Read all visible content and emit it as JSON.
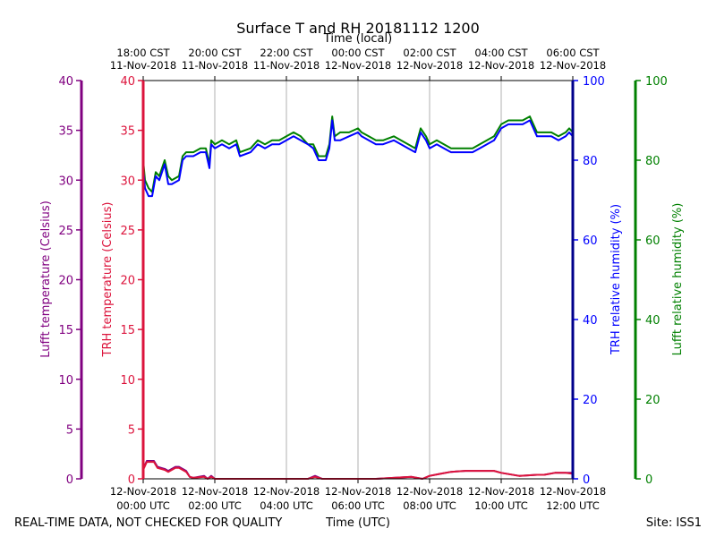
{
  "chart_data": {
    "type": "line",
    "title": "Surface T and RH 20181112 1200",
    "x_top_label": "Time (local)",
    "x_bottom_label": "Time (UTC)",
    "footer_left": "REAL-TIME DATA, NOT CHECKED FOR QUALITY",
    "footer_right": "Site: ISS1",
    "x_range_hours": [
      0,
      12
    ],
    "bottom_ticks": [
      {
        "hour": 0,
        "line1": "12-Nov-2018",
        "line2": "00:00 UTC"
      },
      {
        "hour": 2,
        "line1": "12-Nov-2018",
        "line2": "02:00 UTC"
      },
      {
        "hour": 4,
        "line1": "12-Nov-2018",
        "line2": "04:00 UTC"
      },
      {
        "hour": 6,
        "line1": "12-Nov-2018",
        "line2": "06:00 UTC"
      },
      {
        "hour": 8,
        "line1": "12-Nov-2018",
        "line2": "08:00 UTC"
      },
      {
        "hour": 10,
        "line1": "12-Nov-2018",
        "line2": "10:00 UTC"
      },
      {
        "hour": 12,
        "line1": "12-Nov-2018",
        "line2": "12:00 UTC"
      }
    ],
    "top_ticks": [
      {
        "hour": 0,
        "line1": "18:00 CST",
        "line2": "11-Nov-2018"
      },
      {
        "hour": 2,
        "line1": "20:00 CST",
        "line2": "11-Nov-2018"
      },
      {
        "hour": 4,
        "line1": "22:00 CST",
        "line2": "11-Nov-2018"
      },
      {
        "hour": 6,
        "line1": "00:00 CST",
        "line2": "12-Nov-2018"
      },
      {
        "hour": 8,
        "line1": "02:00 CST",
        "line2": "12-Nov-2018"
      },
      {
        "hour": 10,
        "line1": "04:00 CST",
        "line2": "12-Nov-2018"
      },
      {
        "hour": 12,
        "line1": "06:00 CST",
        "line2": "12-Nov-2018"
      }
    ],
    "axes": {
      "lufft_temp": {
        "label": "Lufft temperature (Celsius)",
        "ylim": [
          0,
          40
        ],
        "ticks": [
          0,
          5,
          10,
          15,
          20,
          25,
          30,
          35,
          40
        ],
        "color": "#800080"
      },
      "trh_temp": {
        "label": "TRH temperature (Celsius)",
        "ylim": [
          0,
          40
        ],
        "ticks": [
          0,
          5,
          10,
          15,
          20,
          25,
          30,
          35,
          40
        ],
        "color": "#dc143c"
      },
      "trh_rh": {
        "label": "TRH relative humidity (%)",
        "ylim": [
          0,
          100
        ],
        "ticks": [
          0,
          20,
          40,
          60,
          80,
          100
        ],
        "color": "#0000ff"
      },
      "lufft_rh": {
        "label": "Lufft relative humidity (%)",
        "ylim": [
          0,
          100
        ],
        "ticks": [
          0,
          20,
          40,
          60,
          80,
          100
        ],
        "color": "#008000"
      }
    },
    "series": [
      {
        "name": "Lufft relative humidity",
        "axis": "lufft_rh",
        "color": "#008000",
        "x": [
          0,
          0.05,
          0.15,
          0.25,
          0.35,
          0.45,
          0.6,
          0.7,
          0.8,
          1.0,
          1.1,
          1.2,
          1.4,
          1.6,
          1.75,
          1.85,
          1.9,
          2.0,
          2.2,
          2.4,
          2.6,
          2.7,
          3.0,
          3.2,
          3.4,
          3.6,
          3.8,
          4.0,
          4.2,
          4.4,
          4.6,
          4.75,
          4.9,
          5.1,
          5.2,
          5.28,
          5.35,
          5.5,
          5.75,
          6.0,
          6.1,
          6.3,
          6.5,
          6.7,
          7.0,
          7.4,
          7.6,
          7.75,
          7.9,
          8.0,
          8.2,
          8.4,
          8.6,
          8.8,
          9.0,
          9.2,
          9.4,
          9.6,
          9.8,
          10.0,
          10.2,
          10.4,
          10.6,
          10.8,
          11.0,
          11.1,
          11.2,
          11.4,
          11.6,
          11.8,
          11.9,
          12.0
        ],
        "values": [
          80,
          75,
          73,
          72,
          77,
          76,
          80,
          76,
          75,
          76,
          81,
          82,
          82,
          83,
          83,
          79,
          85,
          84,
          85,
          84,
          85,
          82,
          83,
          85,
          84,
          85,
          85,
          86,
          87,
          86,
          84,
          84,
          81,
          81,
          84,
          91,
          86,
          87,
          87,
          88,
          87,
          86,
          85,
          85,
          86,
          84,
          83,
          88,
          86,
          84,
          85,
          84,
          83,
          83,
          83,
          83,
          84,
          85,
          86,
          89,
          90,
          90,
          90,
          91,
          87,
          87,
          87,
          87,
          86,
          87,
          88,
          87
        ]
      },
      {
        "name": "TRH relative humidity",
        "axis": "trh_rh",
        "color": "#0000ff",
        "x": [
          0,
          0.05,
          0.15,
          0.25,
          0.35,
          0.45,
          0.6,
          0.7,
          0.8,
          1.0,
          1.1,
          1.2,
          1.4,
          1.6,
          1.75,
          1.85,
          1.9,
          2.0,
          2.2,
          2.4,
          2.6,
          2.7,
          3.0,
          3.2,
          3.4,
          3.6,
          3.8,
          4.0,
          4.2,
          4.4,
          4.6,
          4.75,
          4.9,
          5.1,
          5.2,
          5.28,
          5.35,
          5.5,
          5.75,
          6.0,
          6.1,
          6.3,
          6.5,
          6.7,
          7.0,
          7.4,
          7.6,
          7.75,
          7.9,
          8.0,
          8.2,
          8.4,
          8.6,
          8.8,
          9.0,
          9.2,
          9.4,
          9.6,
          9.8,
          10.0,
          10.2,
          10.4,
          10.6,
          10.8,
          11.0,
          11.1,
          11.2,
          11.4,
          11.6,
          11.8,
          11.9,
          12.0
        ],
        "values": [
          78,
          73,
          71,
          71,
          76,
          75,
          79,
          74,
          74,
          75,
          80,
          81,
          81,
          82,
          82,
          78,
          84,
          83,
          84,
          83,
          84,
          81,
          82,
          84,
          83,
          84,
          84,
          85,
          86,
          85,
          84,
          83,
          80,
          80,
          83,
          90,
          85,
          85,
          86,
          87,
          86,
          85,
          84,
          84,
          85,
          83,
          82,
          87,
          85,
          83,
          84,
          83,
          82,
          82,
          82,
          82,
          83,
          84,
          85,
          88,
          89,
          89,
          89,
          90,
          86,
          86,
          86,
          86,
          85,
          86,
          87,
          86
        ]
      },
      {
        "name": "Lufft temperature",
        "axis": "lufft_temp",
        "color": "#800080",
        "x": [
          0,
          0.1,
          0.3,
          0.4,
          0.6,
          0.7,
          0.9,
          1.0,
          1.1,
          1.2,
          1.3,
          1.4,
          1.7,
          1.8,
          1.9,
          2.0,
          3.0,
          4.0,
          4.6,
          4.8,
          5.0,
          6.0,
          6.5,
          7.0,
          7.5,
          7.8,
          8.0,
          8.3,
          8.6,
          9.0,
          9.5,
          9.8,
          10.0,
          10.5,
          11.0,
          11.2,
          11.5,
          11.8,
          12.0
        ],
        "values": [
          1.0,
          1.8,
          1.8,
          1.2,
          1.0,
          0.8,
          1.2,
          1.2,
          1.0,
          0.8,
          0.2,
          0.1,
          0.3,
          0.0,
          0.3,
          0.0,
          0.0,
          0.0,
          0.0,
          0.3,
          0.0,
          0.0,
          0.0,
          0.1,
          0.2,
          0.0,
          0.3,
          0.5,
          0.7,
          0.8,
          0.8,
          0.8,
          0.6,
          0.3,
          0.4,
          0.4,
          0.6,
          0.6,
          0.6
        ]
      },
      {
        "name": "TRH temperature",
        "axis": "trh_temp",
        "color": "#dc143c",
        "x": [
          0,
          0.1,
          0.3,
          0.4,
          0.6,
          0.7,
          0.9,
          1.0,
          1.1,
          1.2,
          1.3,
          1.4,
          1.7,
          1.8,
          1.9,
          2.0,
          3.0,
          4.0,
          4.6,
          4.8,
          5.0,
          6.0,
          6.5,
          7.0,
          7.5,
          7.8,
          8.0,
          8.3,
          8.6,
          9.0,
          9.5,
          9.8,
          10.0,
          10.5,
          11.0,
          11.2,
          11.5,
          11.8,
          12.0
        ],
        "values": [
          0.9,
          1.7,
          1.7,
          1.1,
          0.9,
          0.7,
          1.1,
          1.1,
          0.9,
          0.7,
          0.2,
          0.1,
          0.2,
          0.0,
          0.2,
          0.0,
          0.0,
          0.0,
          0.0,
          0.2,
          0.0,
          0.0,
          0.0,
          0.1,
          0.2,
          0.0,
          0.3,
          0.5,
          0.7,
          0.8,
          0.8,
          0.8,
          0.6,
          0.3,
          0.4,
          0.4,
          0.6,
          0.6,
          0.5
        ]
      }
    ]
  }
}
